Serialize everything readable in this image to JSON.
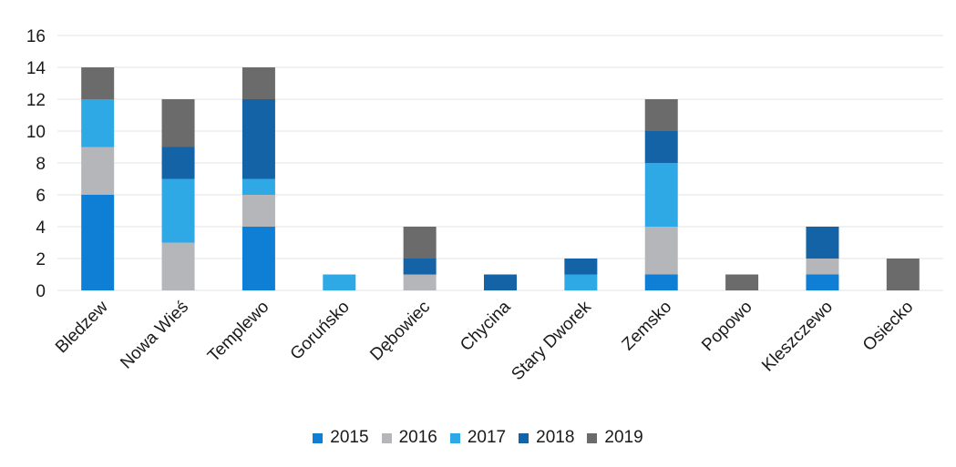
{
  "chart_data": {
    "type": "bar",
    "stacked": true,
    "categories": [
      "Bledzew",
      "Nowa Wieś",
      "Templewo",
      "Goruńsko",
      "Dębowiec",
      "Chycina",
      "Stary Dworek",
      "Zemsko",
      "Popowo",
      "Kleszczewo",
      "Osiecko"
    ],
    "series": [
      {
        "name": "2015",
        "color": "#0f7fd6",
        "values": [
          6,
          0,
          4,
          0,
          0,
          0,
          0,
          1,
          0,
          1,
          0
        ]
      },
      {
        "name": "2016",
        "color": "#b4b6b9",
        "values": [
          3,
          3,
          2,
          0,
          1,
          0,
          0,
          3,
          0,
          1,
          0
        ]
      },
      {
        "name": "2017",
        "color": "#2ea9e6",
        "values": [
          3,
          4,
          1,
          1,
          0,
          0,
          1,
          4,
          0,
          0,
          0
        ]
      },
      {
        "name": "2018",
        "color": "#1463a6",
        "values": [
          0,
          2,
          5,
          0,
          1,
          1,
          1,
          2,
          0,
          2,
          0
        ]
      },
      {
        "name": "2019",
        "color": "#6b6b6b",
        "values": [
          2,
          3,
          2,
          0,
          2,
          0,
          0,
          2,
          1,
          0,
          2
        ]
      }
    ],
    "yticks": [
      0,
      2,
      4,
      6,
      8,
      10,
      12,
      14,
      16
    ],
    "ylim": [
      0,
      16
    ],
    "grid": true,
    "legend_position": "bottom"
  }
}
